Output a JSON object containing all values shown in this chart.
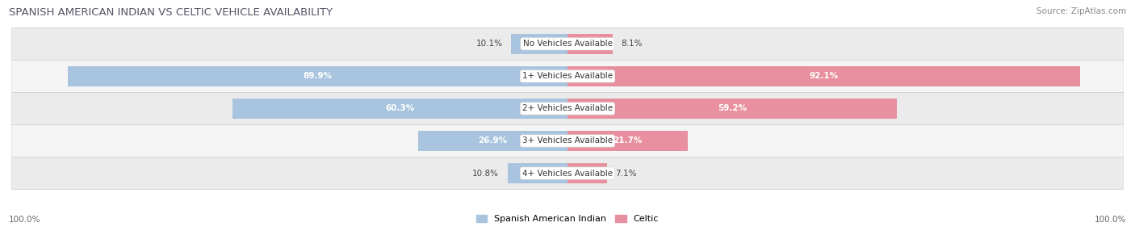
{
  "title": "SPANISH AMERICAN INDIAN VS CELTIC VEHICLE AVAILABILITY",
  "source": "Source: ZipAtlas.com",
  "categories": [
    "No Vehicles Available",
    "1+ Vehicles Available",
    "2+ Vehicles Available",
    "3+ Vehicles Available",
    "4+ Vehicles Available"
  ],
  "spanish_values": [
    10.1,
    89.9,
    60.3,
    26.9,
    10.8
  ],
  "celtic_values": [
    8.1,
    92.1,
    59.2,
    21.7,
    7.1
  ],
  "spanish_color": "#a8c4de",
  "celtic_color": "#e8909f",
  "row_bg_colors": [
    "#ebebeb",
    "#f5f5f5",
    "#ebebeb",
    "#f5f5f5",
    "#ebebeb"
  ],
  "max_value": 100.0,
  "bar_height": 0.62,
  "legend_spanish": "Spanish American Indian",
  "legend_celtic": "Celtic",
  "title_color": "#555566",
  "source_color": "#888888",
  "label_outside_color": "#444444",
  "label_inside_color": "#ffffff",
  "threshold_inside": 15.0
}
